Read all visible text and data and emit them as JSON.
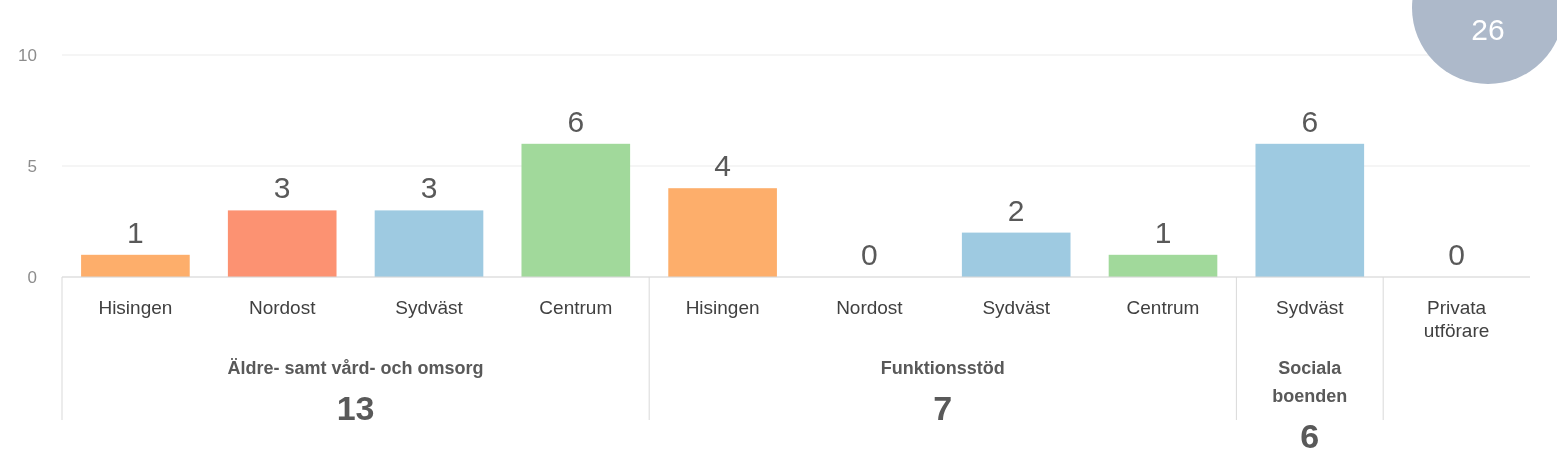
{
  "chart_data": {
    "type": "bar",
    "categories": [
      "Hisingen",
      "Nordost",
      "Sydväst",
      "Centrum",
      "Hisingen",
      "Nordost",
      "Sydväst",
      "Centrum",
      "Sydväst",
      "Privata utförare"
    ],
    "values": [
      1,
      3,
      3,
      6,
      4,
      0,
      2,
      1,
      6,
      0
    ],
    "colors": [
      "#fdae6b",
      "#fc9272",
      "#9ecae1",
      "#a1d99b",
      "#fdae6b",
      "#fc9272",
      "#9ecae1",
      "#a1d99b",
      "#9ecae1",
      "#fdae6b"
    ],
    "ylim": [
      0,
      10
    ],
    "yticks": [
      0,
      5,
      10
    ],
    "grid": "y",
    "data_labels": true,
    "annotations": [
      "Äldre- samt vård- och omsorg",
      "13",
      "Funktionsstöd",
      "7",
      "Sociala boenden",
      "6",
      "26"
    ]
  }
}
